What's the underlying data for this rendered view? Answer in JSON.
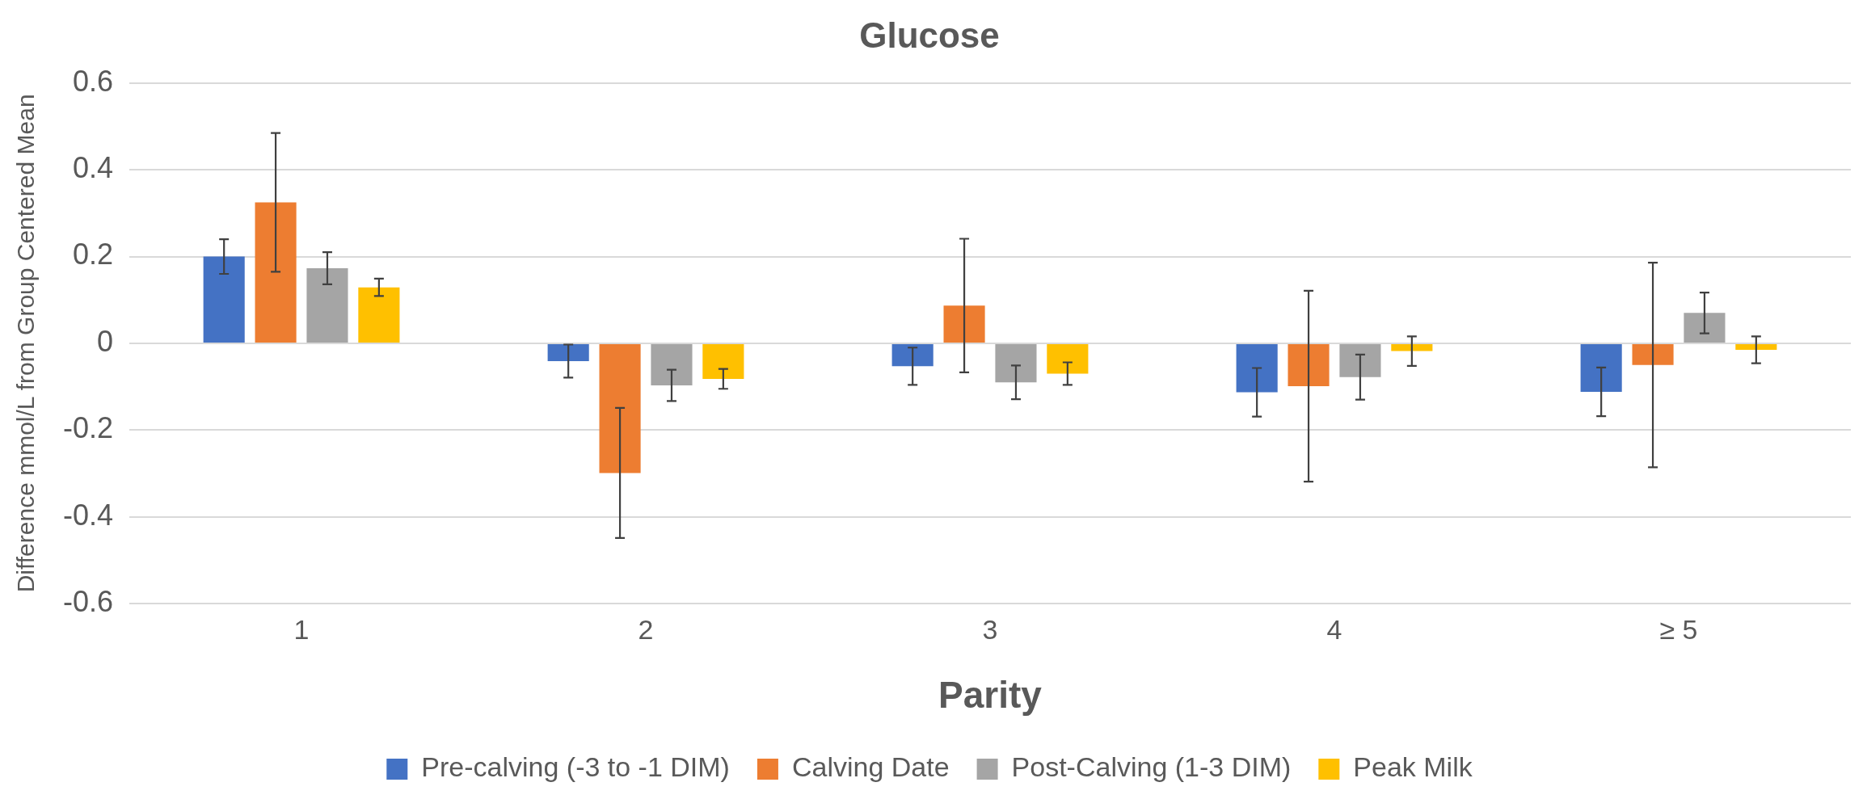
{
  "chart_data": {
    "type": "bar",
    "title": "Glucose",
    "xlabel": "Parity",
    "ylabel": "Difference mmol/L from Group Centered Mean",
    "categories": [
      "1",
      "2",
      "3",
      "4",
      "≥ 5"
    ],
    "series": [
      {
        "name": "Pre-calving (-3 to -1 DIM)",
        "color": "#4472c4",
        "values": [
          0.2,
          -0.041,
          -0.053,
          -0.113,
          -0.112
        ],
        "errors": [
          0.04,
          0.038,
          0.043,
          0.056,
          0.056
        ]
      },
      {
        "name": "Calving Date",
        "color": "#ed7d31",
        "values": [
          0.325,
          -0.299,
          0.087,
          -0.099,
          -0.05
        ],
        "errors": [
          0.16,
          0.15,
          0.154,
          0.22,
          0.236
        ]
      },
      {
        "name": "Post-Calving (1-3 DIM)",
        "color": "#a5a5a5",
        "values": [
          0.173,
          -0.097,
          -0.09,
          -0.078,
          0.07
        ],
        "errors": [
          0.037,
          0.036,
          0.039,
          0.052,
          0.047
        ]
      },
      {
        "name": "Peak Milk",
        "color": "#ffc000",
        "values": [
          0.129,
          -0.082,
          -0.07,
          -0.018,
          -0.015
        ],
        "errors": [
          0.02,
          0.023,
          0.026,
          0.034,
          0.031
        ]
      }
    ],
    "ylim": [
      -0.6,
      0.6
    ],
    "yticks": [
      -0.6,
      -0.4,
      -0.2,
      0,
      0.2,
      0.4,
      0.6
    ],
    "grid": "y",
    "legend": "bottom"
  }
}
